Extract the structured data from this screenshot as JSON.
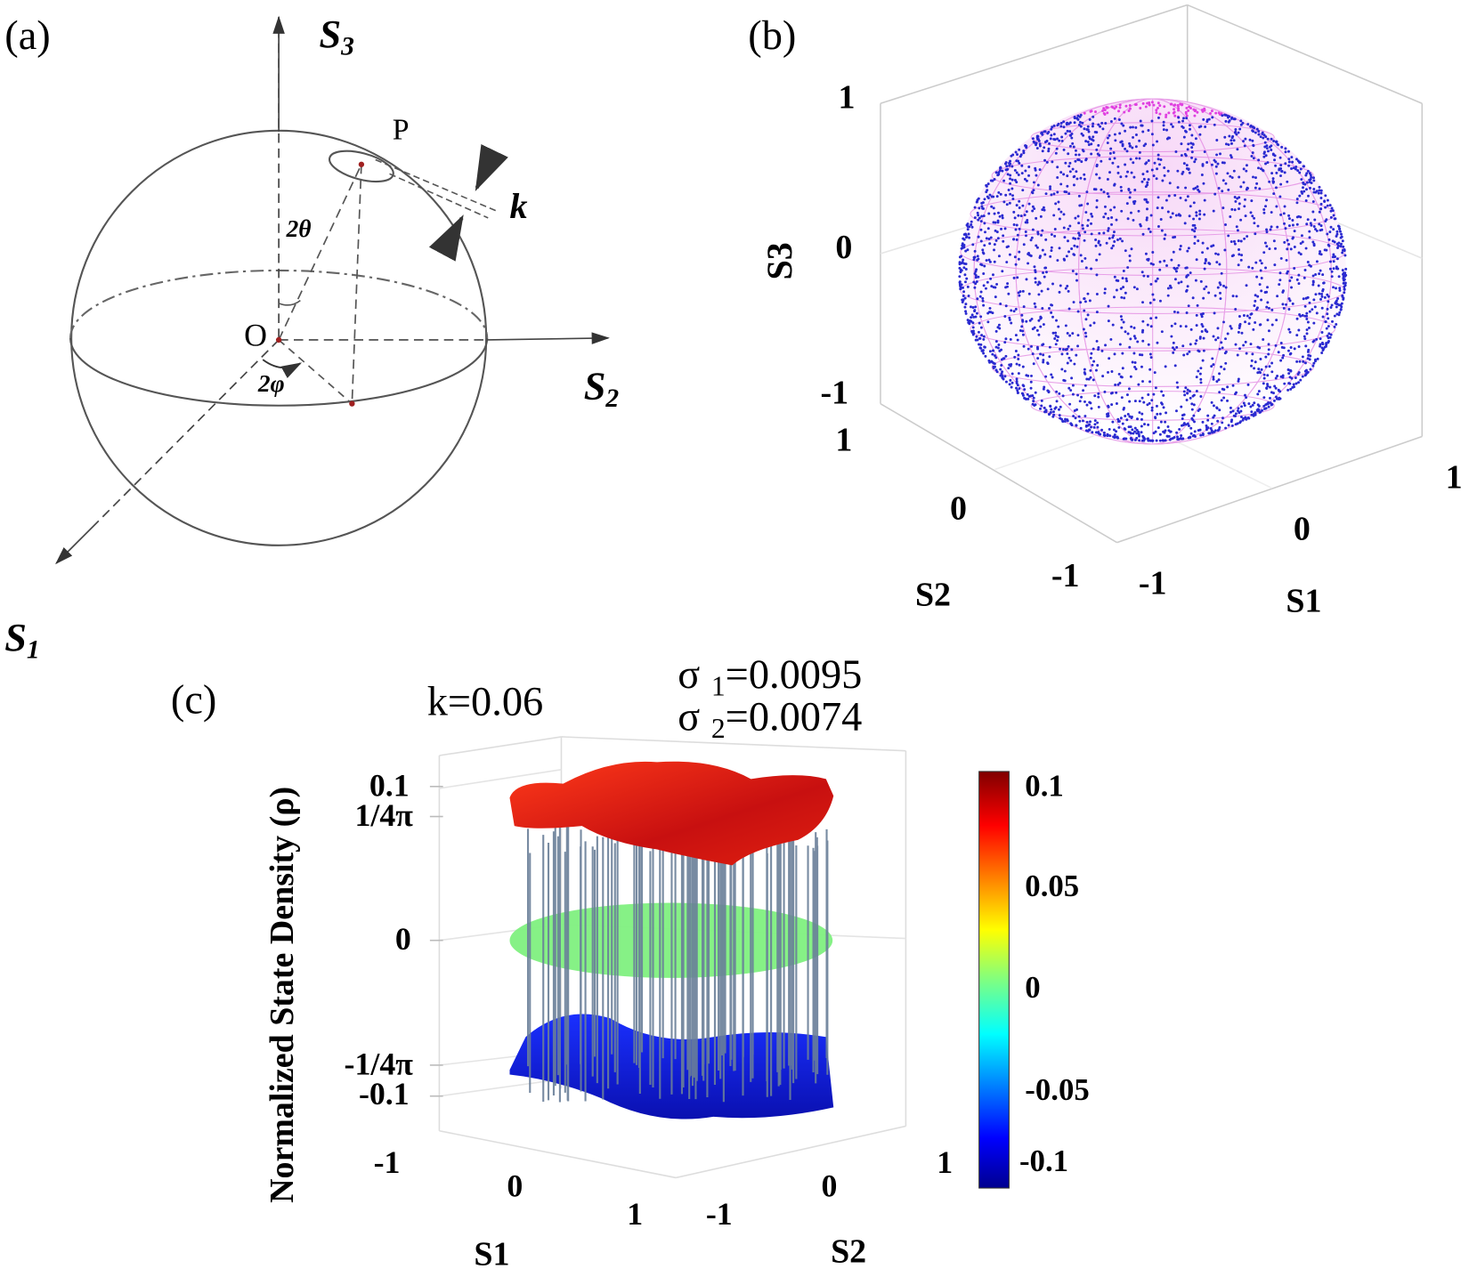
{
  "panel_a": {
    "label": "(a)",
    "axis_s3": "S",
    "axis_s3_sub": "3",
    "axis_s2": "S",
    "axis_s2_sub": "2",
    "axis_s1": "S",
    "axis_s1_sub": "1",
    "point_label": "P",
    "origin_label": "O",
    "theta_label": "2θ",
    "phi_label": "2φ",
    "k_label": "k"
  },
  "panel_b": {
    "label": "(b)",
    "zlabel": "S3",
    "xlabel": "S1",
    "ylabel": "S2",
    "z_ticks": [
      "1",
      "0",
      "-1"
    ],
    "x_ticks": [
      "-1",
      "0",
      "1"
    ],
    "y_ticks": [
      "1",
      "0",
      "-1"
    ],
    "colors": {
      "points": "#2a2ad0",
      "mesh": "#e070e0"
    }
  },
  "panel_c": {
    "label": "(c)",
    "k_annotation": "k=0.06",
    "sigma1_symbol": "σ",
    "sigma1_sub": "1",
    "sigma1_value": "=0.0095",
    "sigma2_symbol": "σ",
    "sigma2_sub": "2",
    "sigma2_value": "=0.0074",
    "zlabel": "Normalized State Density (ρ)",
    "xlabel": "S1",
    "ylabel": "S2",
    "z_ticks": [
      "0.1",
      "1/4π",
      "0",
      "-1/4π",
      "-0.1"
    ],
    "x_ticks": [
      "-1",
      "0",
      "1"
    ],
    "y_ticks": [
      "-1",
      "0",
      "1"
    ],
    "colorbar_ticks": [
      "0.1",
      "0.05",
      "0",
      "-0.05",
      "-0.1"
    ],
    "colors": {
      "top_surface": "#e02010",
      "mid_plane": "#80f080",
      "bottom_surface": "#1020e0",
      "stems": "#6a7f99"
    }
  },
  "chart_data": [
    {
      "type": "scatter",
      "panel": "(b)",
      "description_kind": "3d-scatter-on-unit-sphere",
      "xlabel": "S1",
      "ylabel": "S2",
      "zlabel": "S3",
      "xlim": [
        -1,
        1
      ],
      "ylim": [
        -1,
        1
      ],
      "zlim": [
        -1,
        1
      ],
      "grid": true
    },
    {
      "type": "surface",
      "panel": "(c)",
      "xlabel": "S1",
      "ylabel": "S2",
      "zlabel": "Normalized State Density (ρ)",
      "xlim": [
        -1,
        1
      ],
      "ylim": [
        -1,
        1
      ],
      "zlim": [
        -0.1,
        0.1
      ],
      "z_tick_values": [
        0.1,
        0.0796,
        0,
        -0.0796,
        -0.1
      ],
      "surfaces": [
        "top ≈ 1/4π",
        "plane = 0",
        "bottom ≈ -1/4π"
      ],
      "colorbar": {
        "range": [
          -0.1,
          0.1
        ],
        "colormap": "jet"
      },
      "k": 0.06,
      "sigma1": 0.0095,
      "sigma2": 0.0074,
      "grid": true
    }
  ]
}
